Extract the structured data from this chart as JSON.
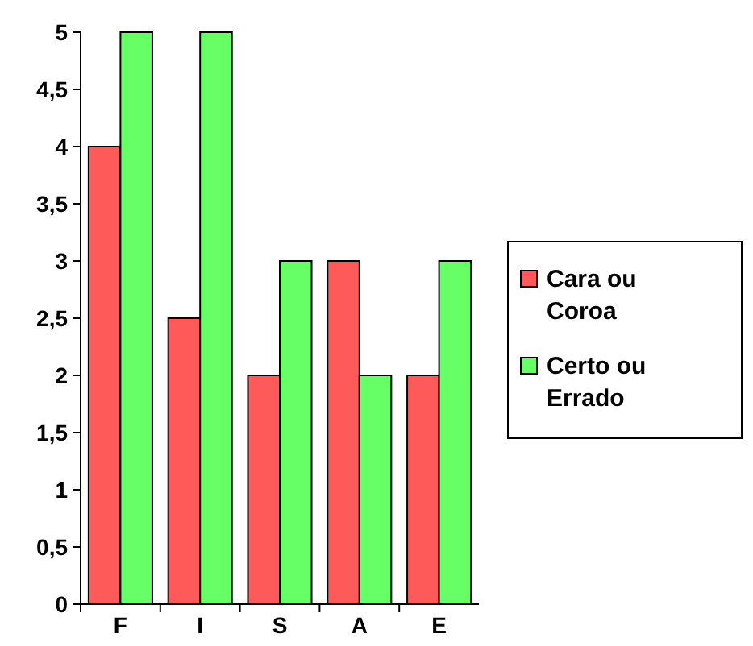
{
  "chart_data": {
    "type": "bar",
    "categories": [
      "F",
      "I",
      "S",
      "A",
      "E"
    ],
    "series": [
      {
        "name": "Cara ou Coroa",
        "color": "#ff5a5a",
        "values": [
          4,
          2.5,
          2,
          3,
          2
        ]
      },
      {
        "name": "Certo ou Errado",
        "color": "#66ff66",
        "values": [
          5,
          5,
          3,
          2,
          3
        ]
      }
    ],
    "ylim": [
      0,
      5
    ],
    "yticks": [
      0,
      {
        "value": 0.5,
        "label": "0,5"
      },
      1,
      {
        "value": 1.5,
        "label": "1,5"
      },
      2,
      {
        "value": 2.5,
        "label": "2,5"
      },
      3,
      {
        "value": 3.5,
        "label": "3,5"
      },
      4,
      {
        "value": 4.5,
        "label": "4,5"
      },
      5
    ],
    "legend": "right"
  }
}
